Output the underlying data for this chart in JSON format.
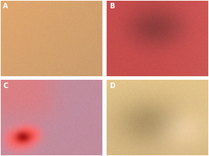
{
  "panels": [
    {
      "label": "A",
      "row": 0,
      "col": 0,
      "base_rgb": [
        0.83,
        0.63,
        0.43
      ],
      "variation": 0.06
    },
    {
      "label": "B",
      "row": 0,
      "col": 1,
      "base_rgb": [
        0.78,
        0.32,
        0.32
      ],
      "variation": 0.05
    },
    {
      "label": "C",
      "row": 1,
      "col": 0,
      "base_rgb": [
        0.78,
        0.6,
        0.65
      ],
      "variation": 0.06
    },
    {
      "label": "D",
      "row": 1,
      "col": 1,
      "base_rgb": [
        0.84,
        0.73,
        0.55
      ],
      "variation": 0.05
    }
  ],
  "border_color": "#ffffff",
  "label_color": "#ffffff",
  "label_bg_alpha": 0.0,
  "label_fontsize": 7,
  "fig_bg": "#ffffff",
  "wspace": 0.03,
  "hspace": 0.03
}
